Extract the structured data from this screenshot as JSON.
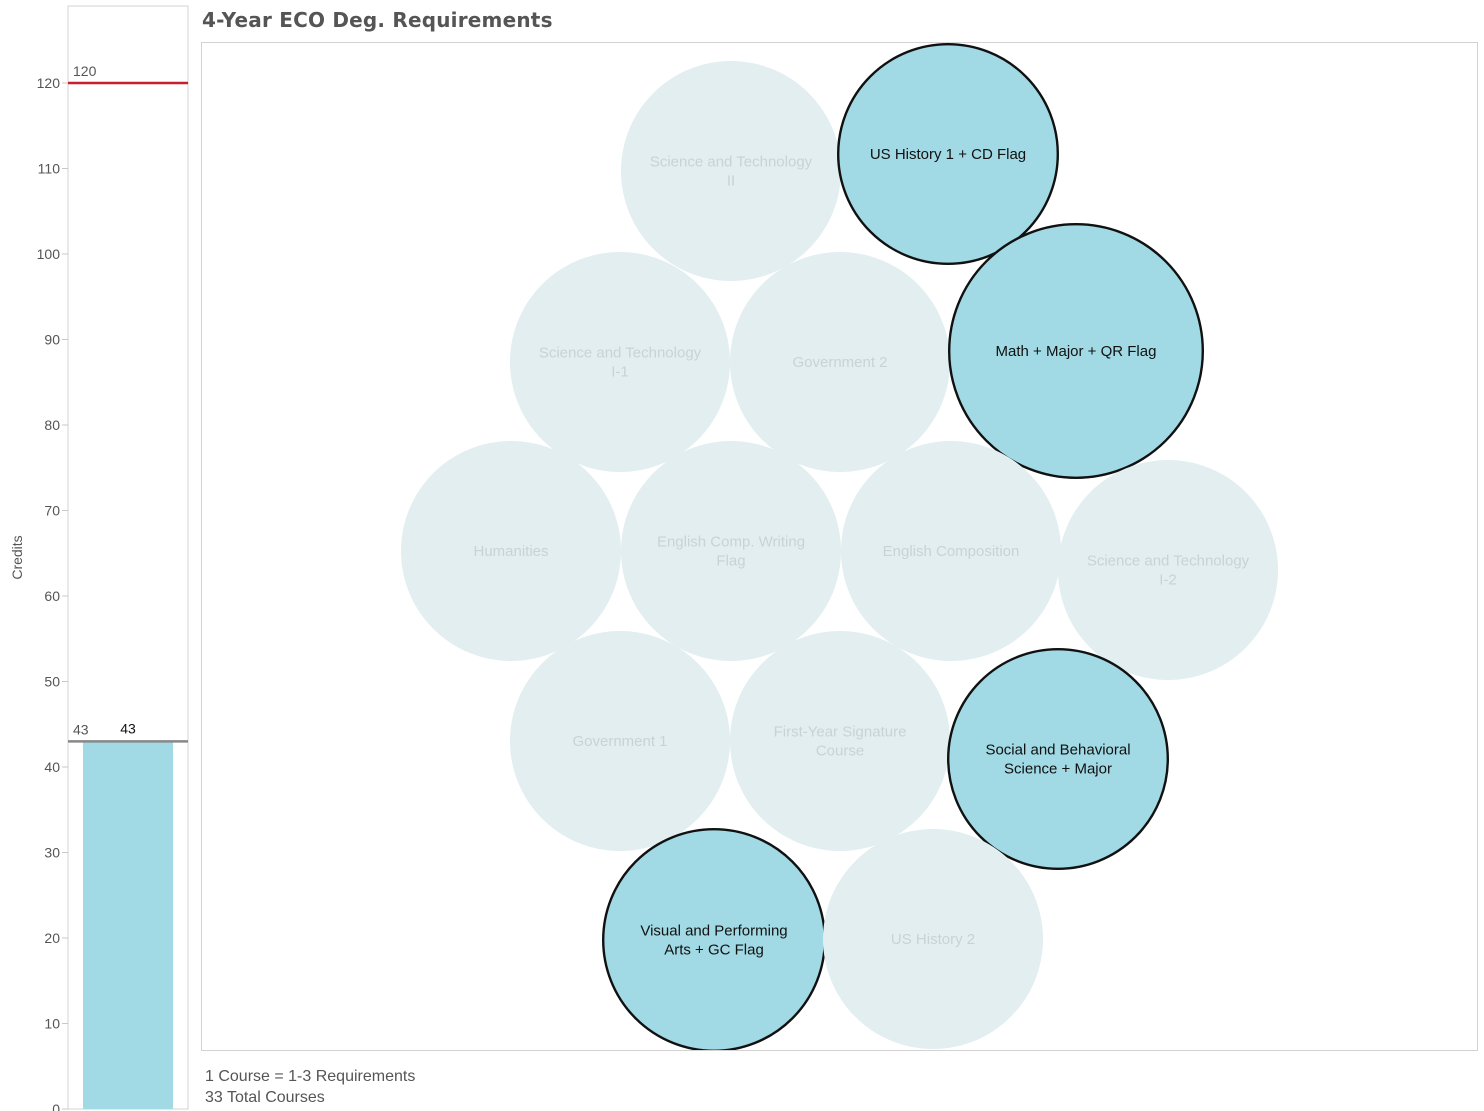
{
  "colors": {
    "completed_fill": "#a1dae4",
    "remaining_fill": "#e2eef0",
    "completed_text": "#111111",
    "remaining_text": "#c9d3d6",
    "target_line": "#c4202f",
    "progress_line": "#888888",
    "border": "#d3d3d3"
  },
  "chart_data": [
    {
      "type": "bar",
      "title": "",
      "xlabel": "",
      "ylabel": "Credits",
      "ylim": [
        0,
        127
      ],
      "yticks": [
        0,
        10,
        20,
        30,
        40,
        50,
        60,
        70,
        80,
        90,
        100,
        110,
        120
      ],
      "categories": [
        ""
      ],
      "values": [
        43
      ],
      "data_labels": [
        "43"
      ],
      "reference_lines": [
        {
          "value": 120,
          "label": "120"
        },
        {
          "value": 43,
          "label": "43"
        }
      ],
      "grid": false
    },
    {
      "type": "bubble",
      "title": "4-Year ECO Deg. Requirements",
      "bubbles": [
        {
          "label_lines": [
            "Science and Technology",
            "II"
          ],
          "completed": false
        },
        {
          "label_lines": [
            "US History 1 + CD Flag"
          ],
          "completed": true
        },
        {
          "label_lines": [
            "Science and Technology",
            "I-1"
          ],
          "completed": false
        },
        {
          "label_lines": [
            "Government 2"
          ],
          "completed": false
        },
        {
          "label_lines": [
            "Math + Major + QR Flag"
          ],
          "completed": true
        },
        {
          "label_lines": [
            "Humanities"
          ],
          "completed": false
        },
        {
          "label_lines": [
            "English Comp. Writing",
            "Flag"
          ],
          "completed": false
        },
        {
          "label_lines": [
            "English Composition"
          ],
          "completed": false
        },
        {
          "label_lines": [
            "Science and Technology",
            "I-2"
          ],
          "completed": false
        },
        {
          "label_lines": [
            "Government 1"
          ],
          "completed": false
        },
        {
          "label_lines": [
            "First-Year Signature",
            "Course"
          ],
          "completed": false
        },
        {
          "label_lines": [
            "Social and Behavioral",
            "Science + Major"
          ],
          "completed": true
        },
        {
          "label_lines": [
            "Visual and Performing",
            "Arts + GC Flag"
          ],
          "completed": true
        },
        {
          "label_lines": [
            "US History 2"
          ],
          "completed": false
        }
      ]
    }
  ],
  "footer": {
    "line1": "1 Course = 1-3 Requirements",
    "line2": "33 Total Courses"
  }
}
